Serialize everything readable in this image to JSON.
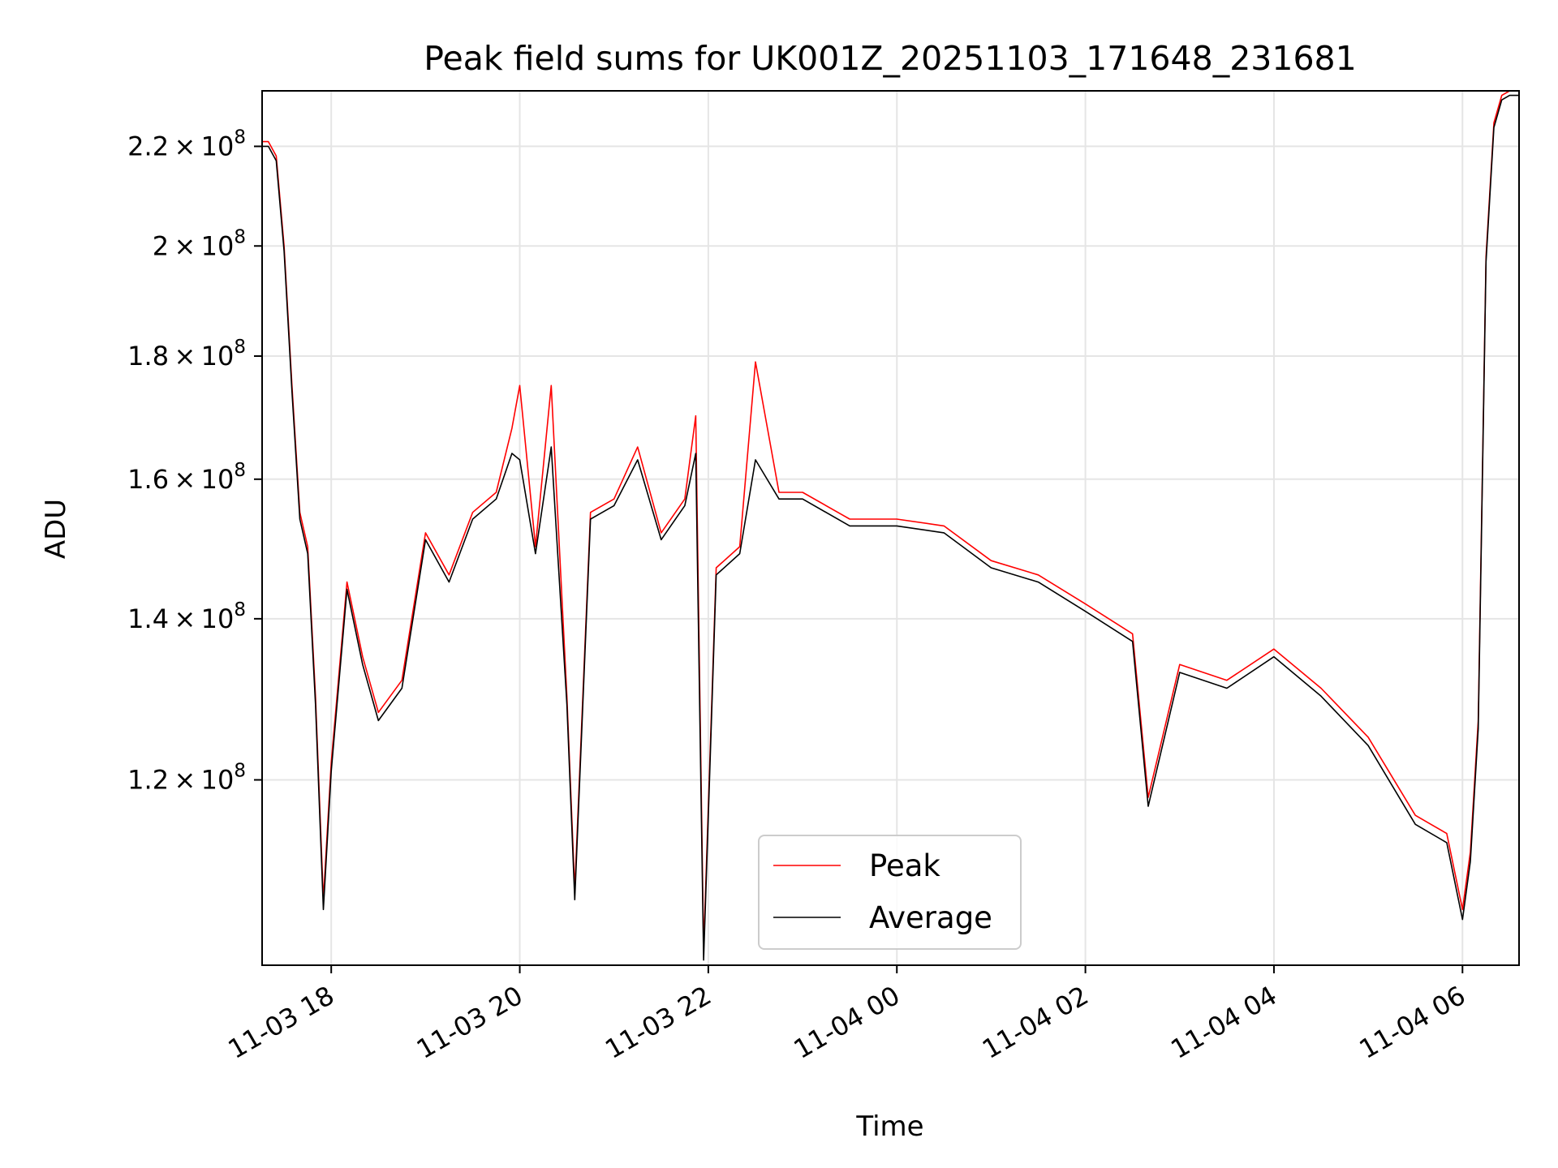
{
  "chart_data": {
    "type": "line",
    "title": "Peak field sums for UK001Z_20251103_171648_231681",
    "xlabel": "Time",
    "ylabel": "ADU",
    "y_scale": "log",
    "ylim": [
      100500000,
      232000000
    ],
    "xlim": [
      "2025-11-03 17:16",
      "2025-11-04 06:36"
    ],
    "x_ticks": [
      "11-03 18",
      "11-03 20",
      "11-03 22",
      "11-04 00",
      "11-04 02",
      "11-04 04",
      "11-04 06"
    ],
    "x_tick_values": [
      "2025-11-03 18:00",
      "2025-11-03 20:00",
      "2025-11-03 22:00",
      "2025-11-04 00:00",
      "2025-11-04 02:00",
      "2025-11-04 04:00",
      "2025-11-04 06:00"
    ],
    "y_ticks": [
      {
        "value": 120000000,
        "mantissa": "1.2",
        "exp": "8"
      },
      {
        "value": 140000000,
        "mantissa": "1.4",
        "exp": "8"
      },
      {
        "value": 160000000,
        "mantissa": "1.6",
        "exp": "8"
      },
      {
        "value": 180000000,
        "mantissa": "1.8",
        "exp": "8"
      },
      {
        "value": 200000000,
        "mantissa": "2",
        "exp": "8"
      },
      {
        "value": 220000000,
        "mantissa": "2.2",
        "exp": "8"
      }
    ],
    "grid": true,
    "legend": {
      "placement": "lower-center",
      "entries": [
        "Peak",
        "Average"
      ]
    },
    "series": [
      {
        "name": "Peak",
        "color": "#ff0000",
        "x": [
          "2025-11-03 17:16",
          "2025-11-03 17:20",
          "2025-11-03 17:25",
          "2025-11-03 17:30",
          "2025-11-03 17:35",
          "2025-11-03 17:40",
          "2025-11-03 17:45",
          "2025-11-03 17:50",
          "2025-11-03 17:55",
          "2025-11-03 18:00",
          "2025-11-03 18:10",
          "2025-11-03 18:20",
          "2025-11-03 18:30",
          "2025-11-03 18:45",
          "2025-11-03 19:00",
          "2025-11-03 19:15",
          "2025-11-03 19:30",
          "2025-11-03 19:45",
          "2025-11-03 19:55",
          "2025-11-03 20:00",
          "2025-11-03 20:10",
          "2025-11-03 20:20",
          "2025-11-03 20:30",
          "2025-11-03 20:35",
          "2025-11-03 20:45",
          "2025-11-03 21:00",
          "2025-11-03 21:15",
          "2025-11-03 21:30",
          "2025-11-03 21:45",
          "2025-11-03 21:52",
          "2025-11-03 21:57",
          "2025-11-03 22:05",
          "2025-11-03 22:20",
          "2025-11-03 22:30",
          "2025-11-03 22:45",
          "2025-11-03 23:00",
          "2025-11-03 23:30",
          "2025-11-04 00:00",
          "2025-11-04 00:30",
          "2025-11-04 01:00",
          "2025-11-04 01:30",
          "2025-11-04 02:00",
          "2025-11-04 02:30",
          "2025-11-04 02:40",
          "2025-11-04 03:00",
          "2025-11-04 03:30",
          "2025-11-04 04:00",
          "2025-11-04 04:30",
          "2025-11-04 05:00",
          "2025-11-04 05:30",
          "2025-11-04 05:50",
          "2025-11-04 06:00",
          "2025-11-04 06:05",
          "2025-11-04 06:10",
          "2025-11-04 06:15",
          "2025-11-04 06:20",
          "2025-11-04 06:25",
          "2025-11-04 06:30",
          "2025-11-04 06:36"
        ],
        "y": [
          221000000,
          221000000,
          218000000,
          200000000,
          175000000,
          155000000,
          150000000,
          130000000,
          107000000,
          122000000,
          145000000,
          135000000,
          128000000,
          132000000,
          152000000,
          146000000,
          155000000,
          158000000,
          168000000,
          175000000,
          150000000,
          175000000,
          130000000,
          108000000,
          155000000,
          157000000,
          165000000,
          152000000,
          157000000,
          170000000,
          102000000,
          147000000,
          150000000,
          179000000,
          158000000,
          158000000,
          154000000,
          154000000,
          153000000,
          148000000,
          146000000,
          142000000,
          138000000,
          118000000,
          134000000,
          132000000,
          136000000,
          131000000,
          125000000,
          116000000,
          114000000,
          106000000,
          112000000,
          127000000,
          198000000,
          225000000,
          231000000,
          232000000,
          232000000
        ]
      },
      {
        "name": "Average",
        "color": "#000000",
        "x": [
          "2025-11-03 17:16",
          "2025-11-03 17:20",
          "2025-11-03 17:25",
          "2025-11-03 17:30",
          "2025-11-03 17:35",
          "2025-11-03 17:40",
          "2025-11-03 17:45",
          "2025-11-03 17:50",
          "2025-11-03 17:55",
          "2025-11-03 18:00",
          "2025-11-03 18:10",
          "2025-11-03 18:20",
          "2025-11-03 18:30",
          "2025-11-03 18:45",
          "2025-11-03 19:00",
          "2025-11-03 19:15",
          "2025-11-03 19:30",
          "2025-11-03 19:45",
          "2025-11-03 19:55",
          "2025-11-03 20:00",
          "2025-11-03 20:10",
          "2025-11-03 20:20",
          "2025-11-03 20:30",
          "2025-11-03 20:35",
          "2025-11-03 20:45",
          "2025-11-03 21:00",
          "2025-11-03 21:15",
          "2025-11-03 21:30",
          "2025-11-03 21:45",
          "2025-11-03 21:52",
          "2025-11-03 21:57",
          "2025-11-03 22:05",
          "2025-11-03 22:20",
          "2025-11-03 22:30",
          "2025-11-03 22:45",
          "2025-11-03 23:00",
          "2025-11-03 23:30",
          "2025-11-04 00:00",
          "2025-11-04 00:30",
          "2025-11-04 01:00",
          "2025-11-04 01:30",
          "2025-11-04 02:00",
          "2025-11-04 02:30",
          "2025-11-04 02:40",
          "2025-11-04 03:00",
          "2025-11-04 03:30",
          "2025-11-04 04:00",
          "2025-11-04 04:30",
          "2025-11-04 05:00",
          "2025-11-04 05:30",
          "2025-11-04 05:50",
          "2025-11-04 06:00",
          "2025-11-04 06:05",
          "2025-11-04 06:10",
          "2025-11-04 06:15",
          "2025-11-04 06:20",
          "2025-11-04 06:25",
          "2025-11-04 06:30",
          "2025-11-04 06:36"
        ],
        "y": [
          220000000,
          220000000,
          217000000,
          199000000,
          174000000,
          154000000,
          149000000,
          129000000,
          106000000,
          121000000,
          144000000,
          134000000,
          127000000,
          131000000,
          151000000,
          145000000,
          154000000,
          157000000,
          164000000,
          163000000,
          149000000,
          165000000,
          129000000,
          107000000,
          154000000,
          156000000,
          163000000,
          151000000,
          156000000,
          164000000,
          101000000,
          146000000,
          149000000,
          163000000,
          157000000,
          157000000,
          153000000,
          153000000,
          152000000,
          147000000,
          145000000,
          141000000,
          137000000,
          117000000,
          133000000,
          131000000,
          135000000,
          130000000,
          124000000,
          115000000,
          113000000,
          105000000,
          111000000,
          126000000,
          197000000,
          224000000,
          230000000,
          231000000,
          231000000
        ]
      }
    ]
  }
}
